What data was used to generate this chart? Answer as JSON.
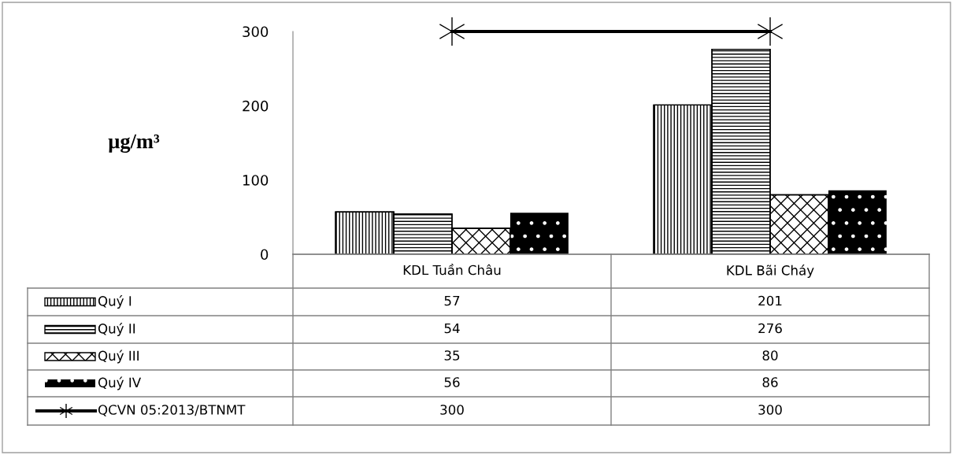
{
  "chart_data": {
    "type": "bar",
    "ylabel": "µg/m³",
    "categories": [
      "KDL Tuần Châu",
      "KDL Bãi Cháy"
    ],
    "series": [
      {
        "name": "Quý I",
        "color": "#000000",
        "values": [
          57,
          201
        ]
      },
      {
        "name": "Quý II",
        "color": "#000000",
        "values": [
          54,
          276
        ]
      },
      {
        "name": "Quý III",
        "color": "#000000",
        "values": [
          35,
          80
        ]
      },
      {
        "name": "Quý IV",
        "color": "#000000",
        "values": [
          56,
          86
        ]
      },
      {
        "name": "QCVN 05:2013/BTNMT",
        "color": "#000000",
        "values": [
          300,
          300
        ],
        "type": "line",
        "marker": "cross",
        "line_style": "solid"
      }
    ],
    "ylim": [
      0,
      300
    ],
    "yticks": [
      0,
      100,
      200,
      300
    ],
    "grid": false,
    "legend": "left",
    "data_labels": true
  }
}
